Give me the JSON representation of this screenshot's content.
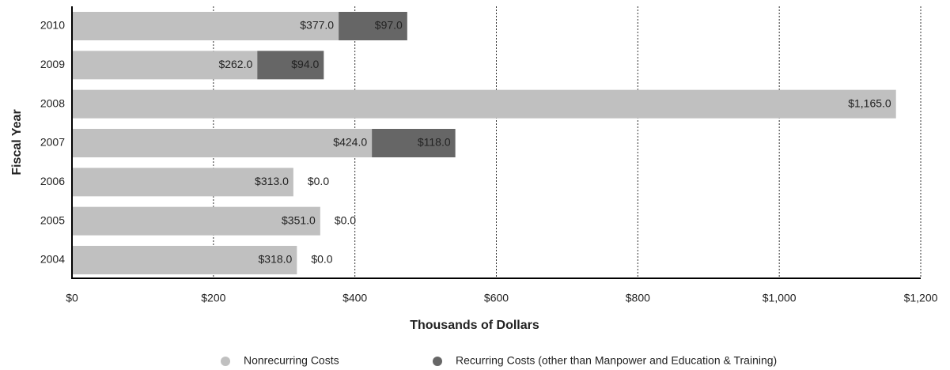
{
  "chart_data": {
    "type": "stacked_barh",
    "xlabel": "Thousands of Dollars",
    "ylabel": "Fiscal Year",
    "categories": [
      "2010",
      "2009",
      "2008",
      "2007",
      "2006",
      "2005",
      "2004"
    ],
    "series": [
      {
        "name": "Nonrecurring Costs",
        "color": "#c0c0c0",
        "values": [
          377,
          262,
          1165,
          424,
          313,
          351,
          318
        ],
        "value_labels": [
          "$377.0",
          "$262.0",
          "$1,165.0",
          "$424.0",
          "$313.0",
          "$351.0",
          "$318.0"
        ]
      },
      {
        "name": "Recurring Costs (other than Manpower and Education & Training)",
        "color": "#666666",
        "values": [
          97,
          94,
          0,
          118,
          0,
          0,
          0
        ],
        "value_labels": [
          "$97.0",
          "$94.0",
          null,
          "$118.0",
          "$0.0",
          "$0.0",
          "$0.0"
        ]
      }
    ],
    "xlim": [
      0,
      1200
    ],
    "xticks": [
      {
        "value": 0,
        "label": "$0"
      },
      {
        "value": 200,
        "label": "$200"
      },
      {
        "value": 400,
        "label": "$400"
      },
      {
        "value": 600,
        "label": "$600"
      },
      {
        "value": 800,
        "label": "$800"
      },
      {
        "value": 1000,
        "label": "$1,000"
      },
      {
        "value": 1200,
        "label": "$1,200"
      }
    ],
    "grid": true,
    "legend": "bottom"
  }
}
